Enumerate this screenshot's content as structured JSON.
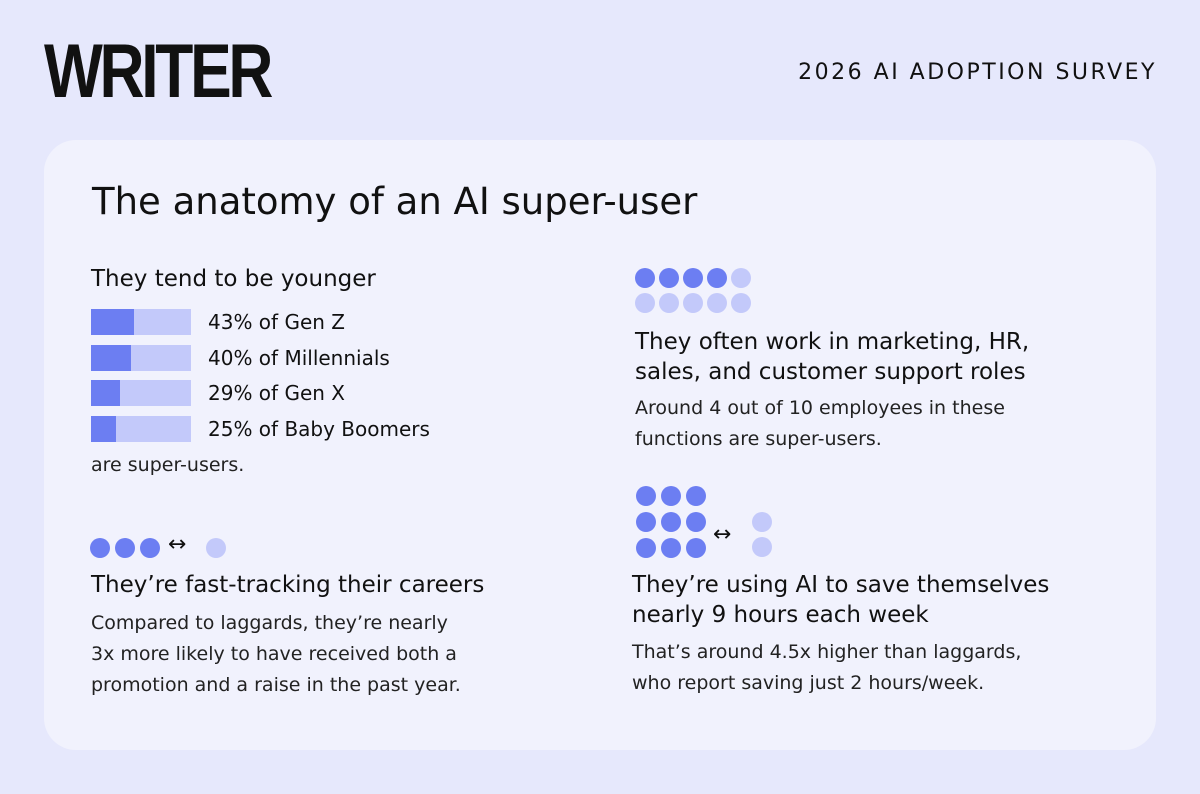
{
  "header": {
    "logo": "WRITER",
    "survey": "2026 AI ADOPTION SURVEY"
  },
  "card": {
    "title": "The anatomy of an AI super-user",
    "age": {
      "heading": "They tend to be younger",
      "items": [
        {
          "value": 43,
          "label": "43% of Gen Z"
        },
        {
          "value": 40,
          "label": "40% of Millennials"
        },
        {
          "value": 29,
          "label": "29% of Gen X"
        },
        {
          "value": 25,
          "label": "25% of Baby Boomers"
        }
      ],
      "footer": "are super-users."
    },
    "roles": {
      "heading": [
        "They often work in marketing, HR,",
        "sales, and customer support roles"
      ],
      "body": [
        "Around 4 out of 10 employees in these",
        "functions are super-users."
      ]
    },
    "careers": {
      "heading": "They’re fast-tracking their careers",
      "body": [
        "Compared to laggards, they’re nearly",
        "3x more likely to have received both a",
        "promotion and a raise in the past year."
      ]
    },
    "hours": {
      "heading": [
        "They’re using AI to save themselves",
        "nearly 9 hours each week"
      ],
      "body": [
        "That’s around 4.5x higher than laggards,",
        "who report saving just 2 hours/week."
      ]
    }
  }
}
